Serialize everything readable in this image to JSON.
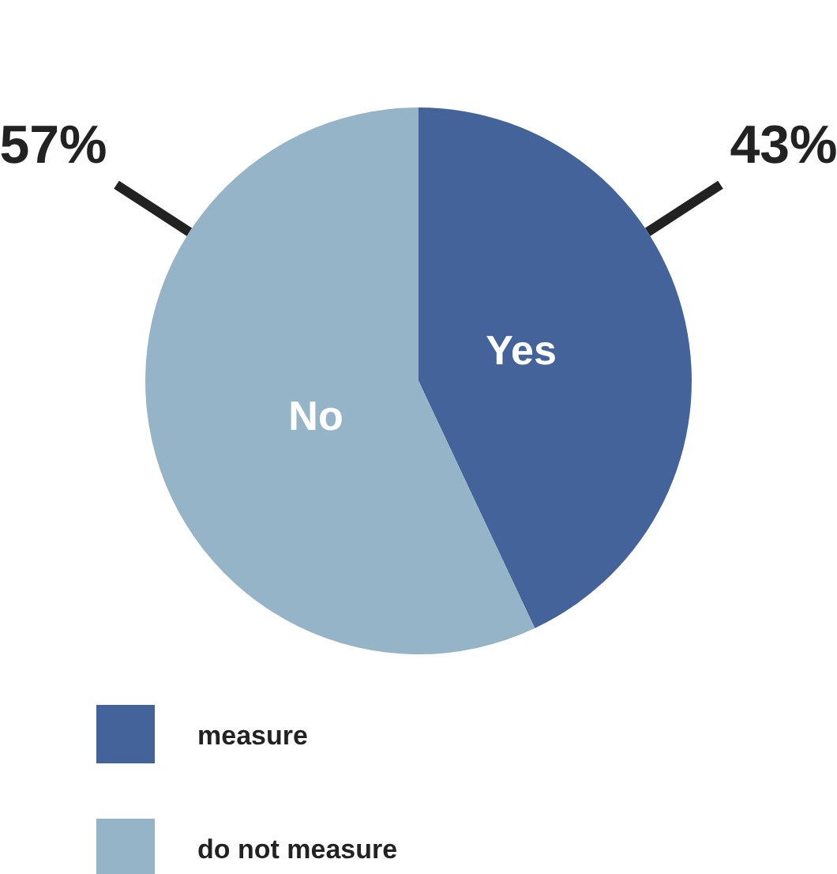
{
  "chart_data": {
    "type": "pie",
    "categories": [
      "measure",
      "do not measure"
    ],
    "values": [
      43,
      57
    ],
    "colors": [
      "#44639a",
      "#95b4c8"
    ],
    "value_labels": [
      "43%",
      "57%"
    ],
    "annotations": [
      {
        "text": "Yes",
        "x": "measure"
      },
      {
        "text": "No",
        "x": "do not measure"
      }
    ],
    "legend": "bottom left"
  }
}
